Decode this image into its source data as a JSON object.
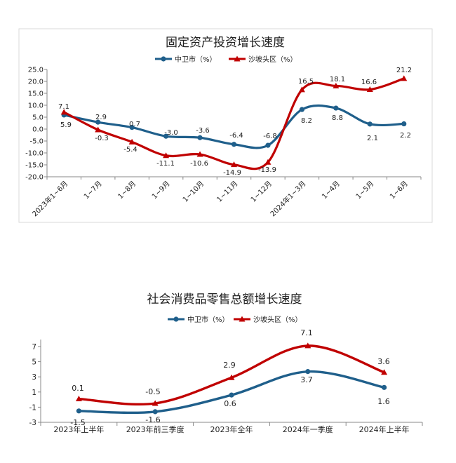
{
  "chart_data": [
    {
      "type": "line",
      "title": "固定资产投资增长速度",
      "categories": [
        "2023年1~6月",
        "1~7月",
        "1~8月",
        "1~9月",
        "1~10月",
        "1~11月",
        "1~12月",
        "2024年1~3月",
        "1~4月",
        "1~5月",
        "1~6月"
      ],
      "ylim": [
        -20,
        25
      ],
      "yticks": [
        "-20.0",
        "-15.0",
        "-10.0",
        "-5.0",
        "0.0",
        "5.0",
        "10.0",
        "15.0",
        "20.0",
        "25.0"
      ],
      "grid": false,
      "legend_position": "top",
      "series": [
        {
          "name": "中卫市（%）",
          "color": "#1f5f8b",
          "marker": "circle",
          "values": [
            5.9,
            2.9,
            0.7,
            -3.0,
            -3.6,
            -6.4,
            -6.8,
            8.2,
            8.8,
            2.1,
            2.2
          ],
          "labels": [
            "5.9",
            "2.9",
            "0.7",
            "-3.0",
            "-3.6",
            "-6.4",
            "-6.8",
            "8.2",
            "8.8",
            "2.1",
            "2.2"
          ]
        },
        {
          "name": "沙坡头区（%）",
          "color": "#c00000",
          "marker": "triangle",
          "values": [
            7.1,
            -0.3,
            -5.4,
            -11.1,
            -10.6,
            -14.9,
            -13.9,
            16.5,
            18.1,
            16.6,
            21.2
          ],
          "labels": [
            "7.1",
            "-0.3",
            "-5.4",
            "-11.1",
            "-10.6",
            "-14.9",
            "-13.9",
            "16.5",
            "18.1",
            "16.6",
            "21.2"
          ]
        }
      ]
    },
    {
      "type": "line",
      "title": "社会消费品零售总额增长速度",
      "categories": [
        "2023年上半年",
        "2023年前三季度",
        "2023年全年",
        "2024年一季度",
        "2024年上半年"
      ],
      "ylim": [
        -3,
        7
      ],
      "yticks": [
        "-3",
        "-1",
        "1",
        "3",
        "5",
        "7"
      ],
      "grid": false,
      "legend_position": "top",
      "series": [
        {
          "name": "中卫市（%）",
          "color": "#1f5f8b",
          "marker": "circle",
          "values": [
            -1.5,
            -1.6,
            0.6,
            3.7,
            1.6
          ],
          "labels": [
            "-1.5",
            "-1.6",
            "0.6",
            "3.7",
            "1.6"
          ]
        },
        {
          "name": "沙坡头区（%）",
          "color": "#c00000",
          "marker": "triangle",
          "values": [
            0.1,
            -0.5,
            2.9,
            7.1,
            3.6
          ],
          "labels": [
            "0.1",
            "-0.5",
            "2.9",
            "7.1",
            "3.6"
          ]
        }
      ]
    }
  ]
}
